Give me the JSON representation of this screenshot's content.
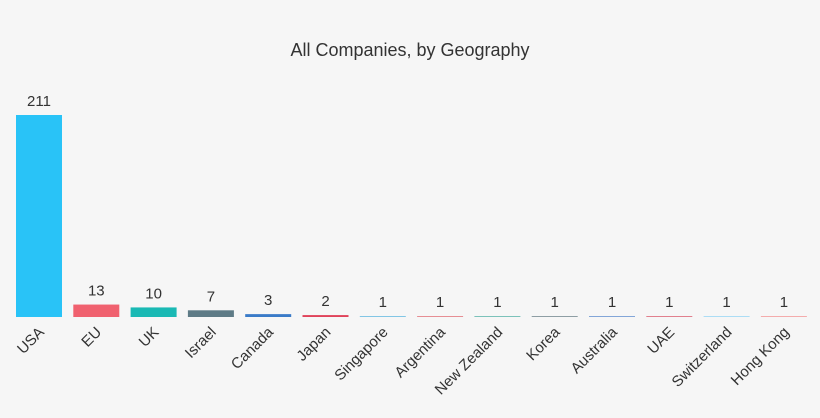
{
  "chart_data": {
    "type": "bar",
    "title": "All Companies, by Geography",
    "categories": [
      "USA",
      "EU",
      "UK",
      "Israel",
      "Canada",
      "Japan",
      "Singapore",
      "Argentina",
      "New Zealand",
      "Korea",
      "Australia",
      "UAE",
      "Switzerland",
      "Hong Kong"
    ],
    "values": [
      211,
      13,
      10,
      7,
      3,
      2,
      1,
      1,
      1,
      1,
      1,
      1,
      1,
      1
    ],
    "colors": [
      "#29c3f7",
      "#f0616f",
      "#1ab9b4",
      "#5e7b86",
      "#3a7bc8",
      "#e0435a",
      "#7dc4e4",
      "#e58a8f",
      "#76bfb8",
      "#8a9aa0",
      "#7ea2d6",
      "#e07b8a",
      "#a8dcf5",
      "#f4a9a9"
    ]
  }
}
